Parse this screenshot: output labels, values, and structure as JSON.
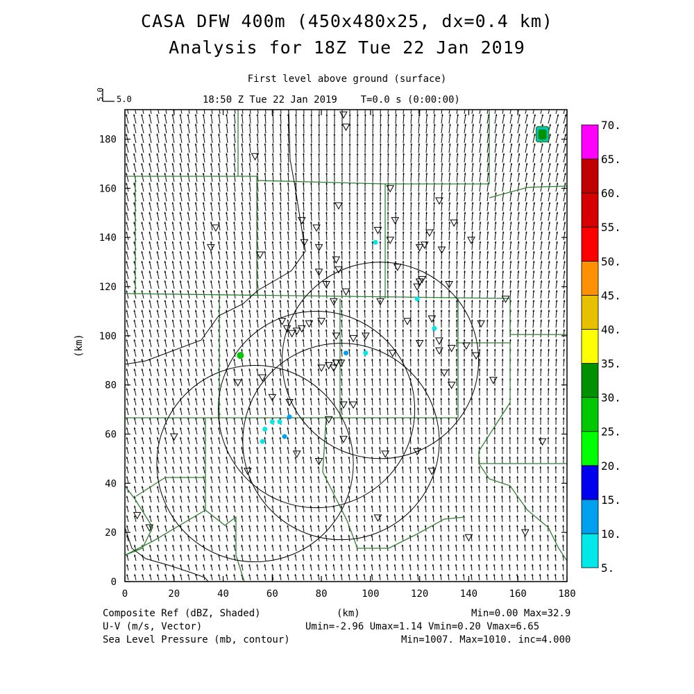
{
  "header": {
    "title_line1": "CASA DFW 400m (450x480x25, dx=0.4 km)",
    "title_line2": "Analysis for 18Z Tue 22 Jan 2019",
    "level": "First level above ground (surface)",
    "time": "18:50 Z Tue 22 Jan 2019    T=0.0 s (0:00:00)",
    "vector_ref_value": "5.0",
    "vector_ref_label": "5.0"
  },
  "chart_data": {
    "type": "heatmap",
    "xlabel": "(km)",
    "ylabel": "(km)",
    "xlim": [
      0,
      180
    ],
    "ylim": [
      0,
      192
    ],
    "x_ticks": [
      0,
      20,
      40,
      60,
      80,
      100,
      120,
      140,
      160,
      180
    ],
    "y_ticks": [
      0,
      20,
      40,
      60,
      80,
      100,
      120,
      140,
      160,
      180
    ],
    "colorbar": {
      "levels": [
        "5.",
        "10.",
        "15.",
        "20.",
        "25.",
        "30.",
        "35.",
        "40.",
        "45.",
        "50.",
        "55.",
        "60.",
        "65.",
        "70."
      ],
      "colors": [
        "#00e8e8",
        "#00a0f0",
        "#0000f0",
        "#00ff00",
        "#00c800",
        "#009000",
        "#ffff00",
        "#e7c000",
        "#ff9000",
        "#ff0000",
        "#d60000",
        "#c00000",
        "#ff00ff"
      ]
    },
    "radar_circles": [
      {
        "center": [
          104,
          90
        ],
        "radius": 40
      },
      {
        "center": [
          78,
          70
        ],
        "radius": 40
      },
      {
        "center": [
          53,
          48
        ],
        "radius": 40
      },
      {
        "center": [
          88,
          57
        ],
        "radius": 40
      }
    ],
    "echoes": [
      {
        "x": 170,
        "y": 182,
        "dbz": 32.9
      },
      {
        "x": 47,
        "y": 92,
        "dbz": 28
      },
      {
        "x": 102,
        "y": 138,
        "dbz": 8
      },
      {
        "x": 90,
        "y": 93,
        "dbz": 14
      },
      {
        "x": 98,
        "y": 93,
        "dbz": 8
      },
      {
        "x": 126,
        "y": 103,
        "dbz": 8
      },
      {
        "x": 119,
        "y": 115,
        "dbz": 7
      },
      {
        "x": 60,
        "y": 65,
        "dbz": 9
      },
      {
        "x": 63,
        "y": 65,
        "dbz": 9
      },
      {
        "x": 67,
        "y": 67,
        "dbz": 10
      },
      {
        "x": 65,
        "y": 59,
        "dbz": 12
      },
      {
        "x": 56,
        "y": 57,
        "dbz": 8
      },
      {
        "x": 57,
        "y": 62,
        "dbz": 7
      }
    ],
    "stations": [
      [
        89,
        190
      ],
      [
        90,
        185
      ],
      [
        53,
        173
      ],
      [
        108,
        160
      ],
      [
        87,
        153
      ],
      [
        128,
        155
      ],
      [
        37,
        144
      ],
      [
        35,
        136
      ],
      [
        72,
        147
      ],
      [
        78,
        144
      ],
      [
        73,
        138
      ],
      [
        79,
        136
      ],
      [
        55,
        133
      ],
      [
        86,
        131
      ],
      [
        103,
        143
      ],
      [
        110,
        147
      ],
      [
        108,
        139
      ],
      [
        124,
        142
      ],
      [
        120,
        136
      ],
      [
        122,
        137
      ],
      [
        134,
        146
      ],
      [
        129,
        135
      ],
      [
        141,
        139
      ],
      [
        111,
        128
      ],
      [
        87,
        127
      ],
      [
        79,
        126
      ],
      [
        82,
        121
      ],
      [
        119,
        120
      ],
      [
        120,
        122
      ],
      [
        121,
        123
      ],
      [
        132,
        121
      ],
      [
        90,
        118
      ],
      [
        85,
        114
      ],
      [
        104,
        114
      ],
      [
        155,
        115
      ],
      [
        64,
        106
      ],
      [
        66,
        103
      ],
      [
        68,
        101
      ],
      [
        70,
        102
      ],
      [
        72,
        103
      ],
      [
        75,
        105
      ],
      [
        80,
        106
      ],
      [
        115,
        106
      ],
      [
        125,
        107
      ],
      [
        145,
        105
      ],
      [
        86,
        100
      ],
      [
        93,
        99
      ],
      [
        98,
        100
      ],
      [
        120,
        97
      ],
      [
        128,
        98
      ],
      [
        128,
        94
      ],
      [
        133,
        95
      ],
      [
        139,
        96
      ],
      [
        143,
        92
      ],
      [
        88,
        89
      ],
      [
        86,
        89
      ],
      [
        83,
        88
      ],
      [
        80,
        87
      ],
      [
        85,
        87
      ],
      [
        56,
        83
      ],
      [
        46,
        81
      ],
      [
        109,
        93
      ],
      [
        130,
        85
      ],
      [
        133,
        80
      ],
      [
        150,
        82
      ],
      [
        60,
        75
      ],
      [
        67,
        73
      ],
      [
        89,
        72
      ],
      [
        93,
        72
      ],
      [
        83,
        66
      ],
      [
        89,
        58
      ],
      [
        70,
        52
      ],
      [
        79,
        49
      ],
      [
        106,
        52
      ],
      [
        119,
        53
      ],
      [
        125,
        45
      ],
      [
        50,
        45
      ],
      [
        20,
        59
      ],
      [
        5,
        27
      ],
      [
        10,
        22
      ],
      [
        103,
        26
      ],
      [
        140,
        18
      ],
      [
        163,
        20
      ],
      [
        170,
        57
      ]
    ]
  },
  "footer": {
    "line1_left": "Composite Ref (dBZ, Shaded)",
    "line1_mid": "(km)",
    "line1_right": "Min=0.00 Max=32.9",
    "line2_left": "U-V (m/s, Vector)",
    "line2_right": "Umin=-2.96 Umax=1.14 Vmin=0.20 Vmax=6.65",
    "line3_left": "Sea Level Pressure (mb, contour)",
    "line3_right": "Min=1007. Max=1010. inc=4.000"
  }
}
